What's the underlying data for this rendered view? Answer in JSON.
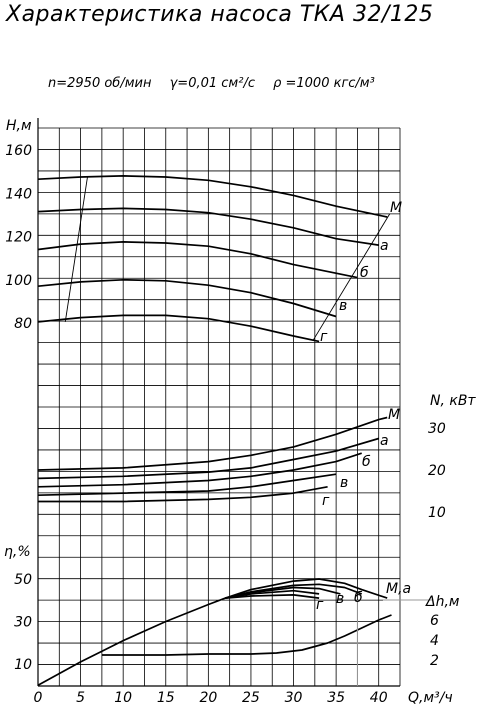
{
  "title": "Характеристика насоса ТКА 32/125",
  "params": [
    "n=2950 об/мин",
    "γ=0,01 см²/с",
    "ρ =1000 кгс/м³"
  ],
  "chart_data": {
    "type": "line",
    "x_axis": {
      "label": "Q,м³/ч",
      "min": 0,
      "max": 42.5,
      "ticks": [
        0,
        5,
        10,
        15,
        20,
        25,
        30,
        35,
        40
      ]
    },
    "head": {
      "ylabel": "Н,м",
      "ylim": [
        50,
        160
      ],
      "ticks": [
        80,
        100,
        120,
        140,
        160
      ],
      "series": [
        {
          "name": "М",
          "x": [
            0,
            5,
            10,
            15,
            20,
            25,
            30,
            35,
            41
          ],
          "y": [
            146.5,
            147.5,
            148,
            147.5,
            146,
            143,
            139,
            134,
            129
          ]
        },
        {
          "name": "а",
          "x": [
            0,
            5,
            10,
            15,
            20,
            25,
            30,
            35,
            40
          ],
          "y": [
            131.5,
            132.5,
            133,
            132.5,
            131,
            128,
            124,
            119,
            116
          ]
        },
        {
          "name": "б",
          "x": [
            0,
            5,
            10,
            15,
            20,
            25,
            30,
            37.5
          ],
          "y": [
            114,
            116.5,
            117.5,
            117,
            115.5,
            112,
            107,
            101
          ]
        },
        {
          "name": "в",
          "x": [
            0,
            5,
            10,
            15,
            20,
            25,
            30,
            35
          ],
          "y": [
            97,
            99,
            100,
            99.5,
            97.5,
            94,
            89,
            83
          ]
        },
        {
          "name": "г",
          "x": [
            0,
            5,
            10,
            15,
            20,
            25,
            30,
            33
          ],
          "y": [
            80.5,
            82.5,
            83.5,
            83.5,
            82,
            78.5,
            74,
            71.5
          ]
        }
      ]
    },
    "power": {
      "ylabel": "N, кВт",
      "ylim": [
        0,
        35
      ],
      "ticks": [
        10,
        20,
        30
      ],
      "series": [
        {
          "name": "М",
          "x": [
            0,
            10,
            20,
            25,
            30,
            35,
            40,
            41
          ],
          "y": [
            20,
            20.5,
            22,
            23.5,
            25.5,
            28.5,
            32,
            32.5
          ]
        },
        {
          "name": "а",
          "x": [
            0,
            10,
            20,
            25,
            30,
            35,
            40
          ],
          "y": [
            18,
            18.5,
            19.5,
            20.5,
            22.5,
            24.5,
            27.5
          ]
        },
        {
          "name": "б",
          "x": [
            0,
            10,
            20,
            25,
            30,
            35,
            38
          ],
          "y": [
            16,
            16.5,
            17.5,
            18.5,
            20,
            22,
            24
          ]
        },
        {
          "name": "в",
          "x": [
            0,
            10,
            20,
            25,
            30,
            35
          ],
          "y": [
            14,
            14.5,
            15,
            16,
            17.5,
            19
          ]
        },
        {
          "name": "г",
          "x": [
            0,
            10,
            20,
            25,
            30,
            34
          ],
          "y": [
            12.5,
            12.5,
            13,
            13.5,
            14.5,
            16
          ]
        }
      ]
    },
    "efficiency": {
      "ylabel": "η,%",
      "ylim": [
        0,
        55
      ],
      "ticks": [
        10,
        30,
        50
      ],
      "series": [
        {
          "name": "М",
          "x": [
            0,
            5,
            10,
            15,
            20,
            22,
            25,
            30,
            33,
            36,
            38,
            41
          ],
          "y": [
            0,
            11,
            21,
            30,
            38,
            41,
            45,
            49,
            50,
            48,
            45,
            41
          ]
        },
        {
          "name": "а",
          "x": [
            22,
            25,
            30,
            33,
            36,
            38
          ],
          "y": [
            41,
            44,
            47,
            47.5,
            46,
            43
          ]
        },
        {
          "name": "б",
          "x": [
            22,
            25,
            30,
            33,
            35.5
          ],
          "y": [
            41,
            43.5,
            46,
            45.5,
            43
          ]
        },
        {
          "name": "в",
          "x": [
            22,
            25,
            30,
            33
          ],
          "y": [
            41,
            43,
            44.5,
            43
          ]
        },
        {
          "name": "г",
          "x": [
            22,
            25,
            30,
            33
          ],
          "y": [
            41,
            42,
            42.5,
            41
          ]
        }
      ]
    },
    "npsh": {
      "ylabel": "Δh,м",
      "ylim": [
        0,
        9
      ],
      "ticks": [
        2,
        4,
        6
      ],
      "series": [
        {
          "name": "Δh",
          "x": [
            7.5,
            10,
            15,
            20,
            25,
            28,
            31,
            34,
            36,
            38,
            40,
            41.5
          ],
          "y": [
            2.5,
            2.5,
            2.5,
            2.6,
            2.6,
            2.7,
            3,
            3.7,
            4.4,
            5.2,
            6,
            6.5
          ]
        }
      ]
    },
    "curve_labels": [
      "М",
      "а",
      "б",
      "в",
      "г"
    ],
    "efficiency_label_right": "М,а",
    "grid": true
  }
}
